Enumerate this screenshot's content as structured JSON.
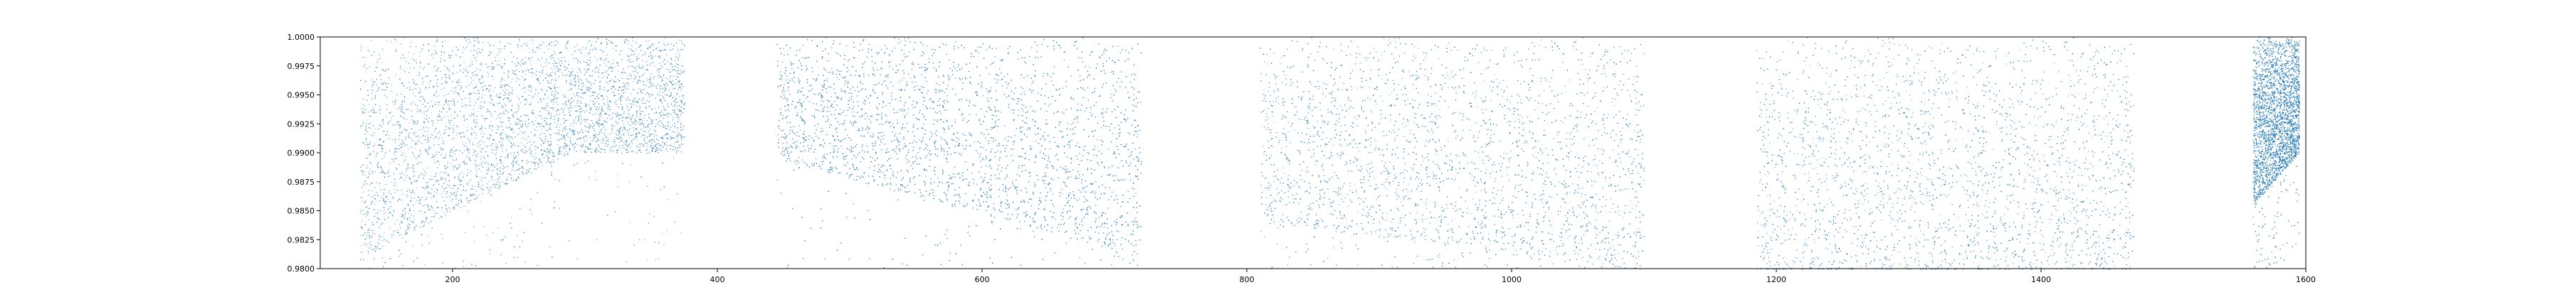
{
  "chart_data": {
    "type": "scatter",
    "title": "",
    "xlabel": "",
    "ylabel": "",
    "xlim": [
      100,
      1600
    ],
    "ylim": [
      0.98,
      1.0
    ],
    "xticks": [
      200,
      400,
      600,
      800,
      1000,
      1200,
      1400,
      1600
    ],
    "xtick_labels": [
      "200",
      "400",
      "600",
      "800",
      "1000",
      "1200",
      "1400",
      "1600"
    ],
    "yticks": [
      0.98,
      0.9825,
      0.985,
      0.9875,
      0.99,
      0.9925,
      0.995,
      0.9975,
      1.0
    ],
    "ytick_labels": [
      "0.9800",
      "0.9825",
      "0.9850",
      "0.9875",
      "0.9900",
      "0.9925",
      "0.9950",
      "0.9975",
      "1.0000"
    ],
    "grid": false,
    "legend": "none",
    "point_color": "#1f77b4",
    "series": [
      {
        "x_range": [
          130,
          375
        ],
        "y_range": [
          0.98,
          1.0
        ],
        "density": "dense",
        "y_min_at_start": 0.981,
        "y_min_at_peak": 0.99,
        "x_peak": 290,
        "y_min_at_end": 0.99
      },
      {
        "x_range": [
          445,
          720
        ],
        "y_range": [
          0.98,
          1.0
        ],
        "density": "dense",
        "y_min_at_start": 0.9895,
        "y_min_at_end": 0.981
      },
      {
        "x_range": [
          810,
          1100
        ],
        "y_range": [
          0.98,
          1.0
        ],
        "density": "medium",
        "y_min_at_start": 0.984,
        "y_min_at_end": 0.98
      },
      {
        "x_range": [
          1185,
          1470
        ],
        "y_range": [
          0.98,
          1.0
        ],
        "density": "medium",
        "y_min_at_start": 0.98,
        "y_min_at_end": 0.98
      },
      {
        "x_range": [
          1560,
          1595
        ],
        "y_range": [
          0.9855,
          1.0
        ],
        "density": "dense",
        "y_min_at_start": 0.9855,
        "y_min_at_end": 0.99
      }
    ]
  }
}
